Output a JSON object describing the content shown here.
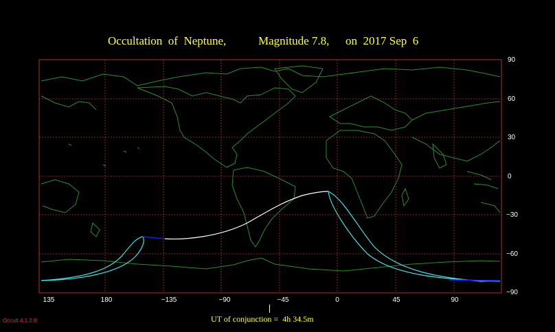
{
  "title": {
    "object": "Occultation  of  Neptune,",
    "magnitude": "Magnitude 7.8,",
    "date": "on  2017 Sep  6"
  },
  "lat_ticks": [
    "90",
    "60",
    "30",
    "0",
    "−30",
    "−60",
    "−90"
  ],
  "lon_ticks": [
    "135",
    "180",
    "−135",
    "−90",
    "−45",
    "0",
    "45",
    "90"
  ],
  "ut_label": "UT of conjunction =  4h 34.5m",
  "version": "Occult 4.1.2.0",
  "colors": {
    "background": "#000000",
    "grid": "#b03030",
    "coast": "#2e8b2e",
    "title": "#ffff33",
    "path_central": "#ffffff",
    "path_edge": "#40e0e0",
    "path_daylight": "#1a1aff"
  }
}
